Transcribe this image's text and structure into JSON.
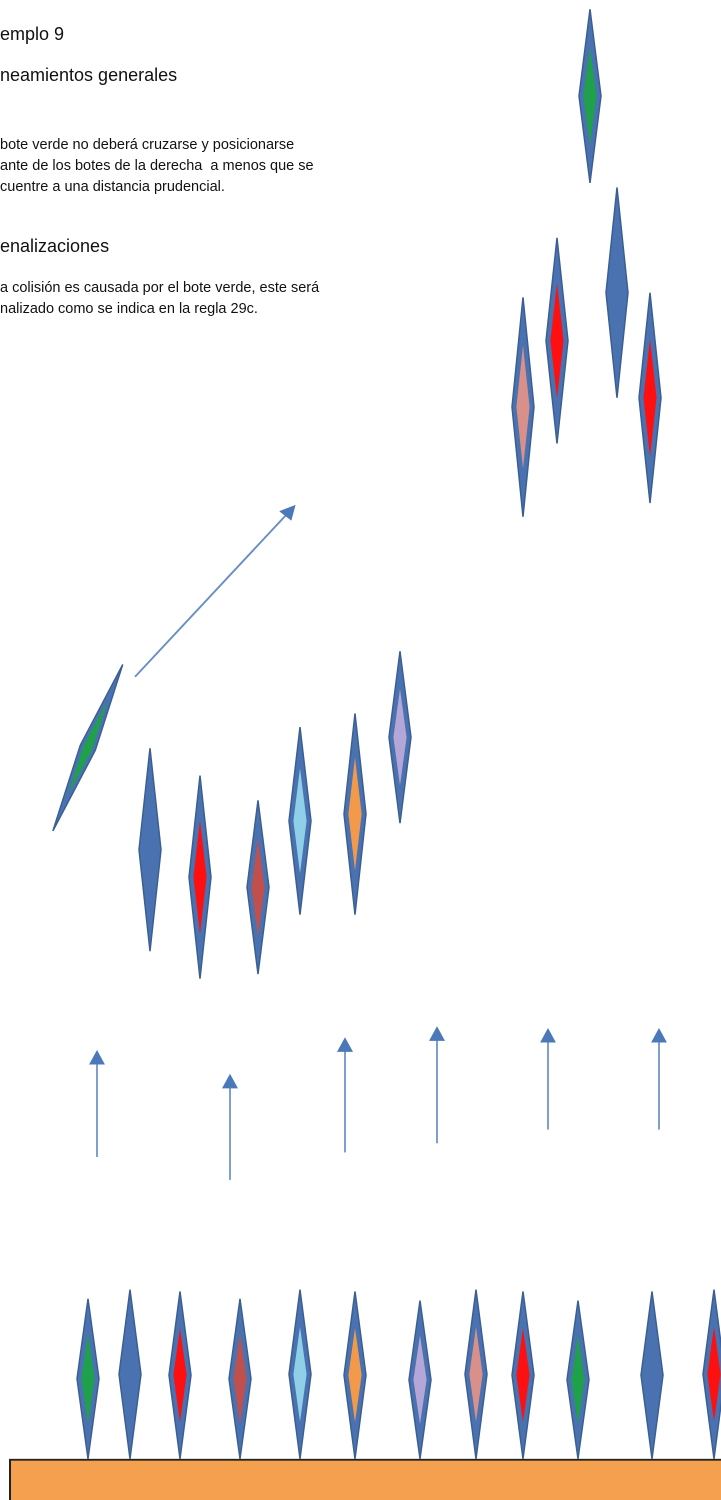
{
  "title": "emplo 9",
  "sections": [
    {
      "heading": "neamientos generales",
      "lines": [
        "bote verde no deberá cruzarse y posicionarse",
        "ante de los botes de la derecha  a menos que se",
        "cuentre a una distancia prudencial."
      ]
    },
    {
      "heading": "enalizaciones",
      "lines": [
        "a colisión es causada por el bote verde, este será",
        "nalizado como se indica en la regla 29c."
      ]
    }
  ]
}
